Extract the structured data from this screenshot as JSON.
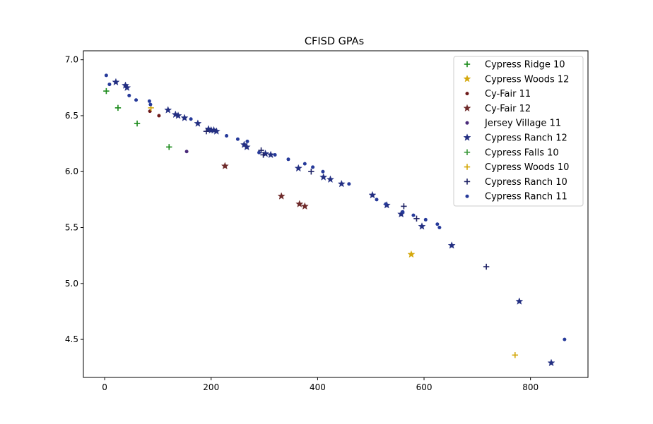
{
  "chart_data": {
    "type": "scatter",
    "title": "CFISD GPAs",
    "xlabel": "",
    "ylabel": "",
    "xlim": [
      -40,
      908
    ],
    "ylim": [
      4.16,
      7.08
    ],
    "xticks": [
      0,
      200,
      400,
      600,
      800
    ],
    "yticks": [
      4.5,
      5.0,
      5.5,
      6.0,
      6.5,
      7.0
    ],
    "ytick_labels": [
      "4.5",
      "5.0",
      "5.5",
      "6.0",
      "6.5",
      "7.0"
    ],
    "grid": false,
    "legend_position": "top-right",
    "series": [
      {
        "name": "Cypress Ridge  10",
        "marker": "plus",
        "color": "#1a8a1a",
        "points": [
          [
            3,
            6.72
          ],
          [
            25,
            6.57
          ],
          [
            61,
            6.43
          ],
          [
            121,
            6.22
          ]
        ]
      },
      {
        "name": "Cypress Woods  12",
        "marker": "star",
        "color": "#d4a80c",
        "points": [
          [
            576,
            5.26
          ]
        ]
      },
      {
        "name": "Cy-Fair  11",
        "marker": "dot",
        "color": "#6e1a1a",
        "points": [
          [
            85,
            6.54
          ],
          [
            102,
            6.5
          ]
        ]
      },
      {
        "name": "Cy-Fair  12",
        "marker": "star",
        "color": "#6e2a2a",
        "points": [
          [
            226,
            6.05
          ],
          [
            332,
            5.78
          ],
          [
            366,
            5.71
          ],
          [
            376,
            5.69
          ]
        ]
      },
      {
        "name": "Jersey Village  11",
        "marker": "dot",
        "color": "#4a2a7a",
        "points": [
          [
            154,
            6.18
          ]
        ]
      },
      {
        "name": "Cypress Ranch  12",
        "marker": "star",
        "color": "#232f82",
        "points": [
          [
            21,
            6.8
          ],
          [
            39,
            6.77
          ],
          [
            42,
            6.75
          ],
          [
            119,
            6.55
          ],
          [
            133,
            6.51
          ],
          [
            138,
            6.5
          ],
          [
            150,
            6.48
          ],
          [
            175,
            6.43
          ],
          [
            195,
            6.38
          ],
          [
            200,
            6.37
          ],
          [
            205,
            6.37
          ],
          [
            210,
            6.36
          ],
          [
            262,
            6.24
          ],
          [
            267,
            6.22
          ],
          [
            302,
            6.16
          ],
          [
            312,
            6.15
          ],
          [
            364,
            6.03
          ],
          [
            411,
            5.95
          ],
          [
            424,
            5.93
          ],
          [
            445,
            5.89
          ],
          [
            503,
            5.79
          ],
          [
            530,
            5.7
          ],
          [
            557,
            5.62
          ],
          [
            596,
            5.51
          ],
          [
            652,
            5.34
          ],
          [
            779,
            4.84
          ],
          [
            839,
            4.29
          ]
        ]
      },
      {
        "name": "Cypress Falls  10",
        "marker": "plus",
        "color": "#3a9a3a",
        "points": []
      },
      {
        "name": "Cypress Woods  10",
        "marker": "plus",
        "color": "#d4a80c",
        "points": [
          [
            87,
            6.57
          ],
          [
            771,
            4.36
          ]
        ]
      },
      {
        "name": "Cypress Ranch  10",
        "marker": "plus",
        "color": "#1f2366",
        "points": [
          [
            191,
            6.36
          ],
          [
            294,
            6.19
          ],
          [
            298,
            6.15
          ],
          [
            388,
            6.0
          ],
          [
            562,
            5.69
          ],
          [
            586,
            5.58
          ],
          [
            717,
            5.15
          ]
        ]
      },
      {
        "name": "Cypress Ranch  11",
        "marker": "dot",
        "color": "#263a9a",
        "points": [
          [
            3,
            6.86
          ],
          [
            9,
            6.78
          ],
          [
            46,
            6.68
          ],
          [
            59,
            6.64
          ],
          [
            84,
            6.63
          ],
          [
            86,
            6.6
          ],
          [
            162,
            6.47
          ],
          [
            229,
            6.32
          ],
          [
            250,
            6.29
          ],
          [
            268,
            6.27
          ],
          [
            290,
            6.17
          ],
          [
            320,
            6.15
          ],
          [
            345,
            6.11
          ],
          [
            376,
            6.07
          ],
          [
            391,
            6.04
          ],
          [
            410,
            6.0
          ],
          [
            459,
            5.89
          ],
          [
            511,
            5.75
          ],
          [
            528,
            5.71
          ],
          [
            560,
            5.64
          ],
          [
            580,
            5.61
          ],
          [
            603,
            5.57
          ],
          [
            625,
            5.53
          ],
          [
            629,
            5.5
          ],
          [
            864,
            4.5
          ]
        ]
      }
    ]
  }
}
